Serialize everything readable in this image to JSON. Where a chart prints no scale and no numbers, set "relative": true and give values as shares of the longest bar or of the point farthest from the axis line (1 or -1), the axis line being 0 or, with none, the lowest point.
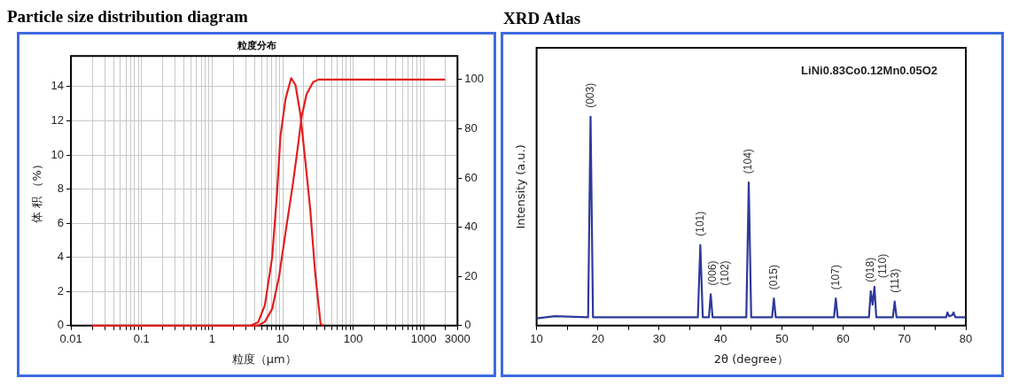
{
  "chart_data": [
    {
      "type": "line",
      "title": "Particle size distribution diagram",
      "subtitle": "粒度分布",
      "xlabel": "粒度（μm）",
      "ylabel": "体 积 （%）",
      "log": "x",
      "grid": true,
      "legend": false,
      "marker": "none",
      "line_style": "solid",
      "xlim": [
        0.01,
        3000
      ],
      "xticks": [
        0.01,
        {
          "value": 0.02,
          "label": null
        },
        {
          "value": 0.03,
          "label": null
        },
        {
          "value": 0.04,
          "label": null
        },
        {
          "value": 0.05,
          "label": null
        },
        {
          "value": 0.06,
          "label": null
        },
        {
          "value": 0.07,
          "label": null
        },
        {
          "value": 0.08,
          "label": null
        },
        {
          "value": 0.09,
          "label": null
        },
        0.1,
        {
          "value": 0.2,
          "label": null
        },
        {
          "value": 0.3,
          "label": null
        },
        {
          "value": 0.4,
          "label": null
        },
        {
          "value": 0.5,
          "label": null
        },
        {
          "value": 0.6,
          "label": null
        },
        {
          "value": 0.7,
          "label": null
        },
        {
          "value": 0.8,
          "label": null
        },
        {
          "value": 0.9,
          "label": null
        },
        1,
        {
          "value": 2,
          "label": null
        },
        {
          "value": 3,
          "label": null
        },
        {
          "value": 4,
          "label": null
        },
        {
          "value": 5,
          "label": null
        },
        {
          "value": 6,
          "label": null
        },
        {
          "value": 7,
          "label": null
        },
        {
          "value": 8,
          "label": null
        },
        {
          "value": 9,
          "label": null
        },
        10,
        {
          "value": 20,
          "label": null
        },
        {
          "value": 30,
          "label": null
        },
        {
          "value": 40,
          "label": null
        },
        {
          "value": 50,
          "label": null
        },
        {
          "value": 60,
          "label": null
        },
        {
          "value": 70,
          "label": null
        },
        {
          "value": 80,
          "label": null
        },
        {
          "value": 90,
          "label": null
        },
        100,
        {
          "value": 200,
          "label": null
        },
        {
          "value": 300,
          "label": null
        },
        {
          "value": 400,
          "label": null
        },
        {
          "value": 500,
          "label": null
        },
        {
          "value": 600,
          "label": null
        },
        {
          "value": 700,
          "label": null
        },
        {
          "value": 800,
          "label": null
        },
        {
          "value": 900,
          "label": null
        },
        1000,
        {
          "value": 2000,
          "label": null
        },
        3000
      ],
      "ylim": [
        0,
        15.8
      ],
      "yticks": [
        0,
        2,
        4,
        6,
        8,
        10,
        12,
        14
      ],
      "y2lim": [
        0,
        109.6
      ],
      "y2ticks": [
        0,
        20,
        40,
        60,
        80,
        100
      ],
      "series": [
        {
          "color": "#e02020",
          "x": [
            3.5,
            4.5,
            5.6,
            7.1,
            8.3,
            9.3,
            11,
            13.2,
            15.2,
            17.8,
            21,
            24.6,
            29,
            34.5,
            38
          ],
          "values": [
            0,
            0.2,
            1.2,
            4.0,
            7.7,
            11.1,
            13.3,
            14.5,
            14.1,
            12.4,
            9.6,
            6.8,
            3.0,
            0.1,
            0
          ]
        },
        {
          "color": "#e02020",
          "axis": "y2",
          "x": [
            0.02,
            4.5,
            5.6,
            7.1,
            8.9,
            11,
            13.7,
            15.8,
            18.6,
            21.8,
            27,
            32,
            2000
          ],
          "values": [
            0,
            0,
            1.6,
            6.8,
            20,
            38,
            56,
            69,
            85,
            94,
            99,
            100,
            100
          ]
        }
      ]
    },
    {
      "type": "line",
      "title": "XRD Atlas",
      "xlabel": "2θ (degree）",
      "ylabel": "Intensity (a.u.)",
      "relative": true,
      "tick_labels": "x",
      "grid": false,
      "legend": false,
      "marker": "none",
      "line_style": "solid",
      "xlim": [
        10,
        80
      ],
      "xticks": [
        10,
        {
          "value": 15,
          "label": null
        },
        20,
        {
          "value": 25,
          "label": null
        },
        30,
        {
          "value": 35,
          "label": null
        },
        40,
        {
          "value": 45,
          "label": null
        },
        50,
        {
          "value": 55,
          "label": null
        },
        60,
        {
          "value": 65,
          "label": null
        },
        70,
        {
          "value": 75,
          "label": null
        },
        80
      ],
      "series": [
        {
          "color": "#2e3a9a",
          "x": [
            10,
            13,
            18.4,
            18.8,
            19.2,
            36.3,
            36.7,
            37.1,
            38.1,
            38.4,
            38.7,
            44.2,
            44.6,
            45.0,
            48.4,
            48.7,
            49.0,
            58.5,
            58.8,
            59.1,
            64.2,
            64.5,
            64.8,
            65.1,
            65.4,
            68.1,
            68.4,
            68.7,
            76.8,
            77.0,
            77.3,
            77.8,
            78.0,
            78.3,
            80
          ],
          "values": [
            0.035,
            0.045,
            0.04,
            1,
            0.04,
            0.04,
            0.386,
            0.04,
            0.04,
            0.15,
            0.04,
            0.04,
            0.685,
            0.04,
            0.04,
            0.13,
            0.04,
            0.04,
            0.13,
            0.04,
            0.04,
            0.165,
            0.1,
            0.186,
            0.04,
            0.04,
            0.115,
            0.04,
            0.04,
            0.063,
            0.045,
            0.05,
            0.063,
            0.04,
            0.04
          ]
        }
      ],
      "annotations": [
        "LiNi0.83Co0.12Mn0.05O2",
        {
          "text": "(003)",
          "x": 18.8,
          "y": 1
        },
        {
          "text": "(101)",
          "x": 36.7,
          "y": 0.386
        },
        {
          "text": "(006)",
          "x": 38.4,
          "y": 0.15
        },
        {
          "text": "(102)",
          "x": 38.4,
          "y": 0.15
        },
        {
          "text": "(104)",
          "x": 44.6,
          "y": 0.685
        },
        {
          "text": "(015)",
          "x": 48.7,
          "y": 0.13
        },
        {
          "text": "(107)",
          "x": 58.8,
          "y": 0.13
        },
        {
          "text": "(018)",
          "x": 64.5,
          "y": 0.165
        },
        {
          "text": "(110)",
          "x": 65.1,
          "y": 0.186
        },
        {
          "text": "(113)",
          "x": 68.4,
          "y": 0.115
        }
      ]
    }
  ]
}
